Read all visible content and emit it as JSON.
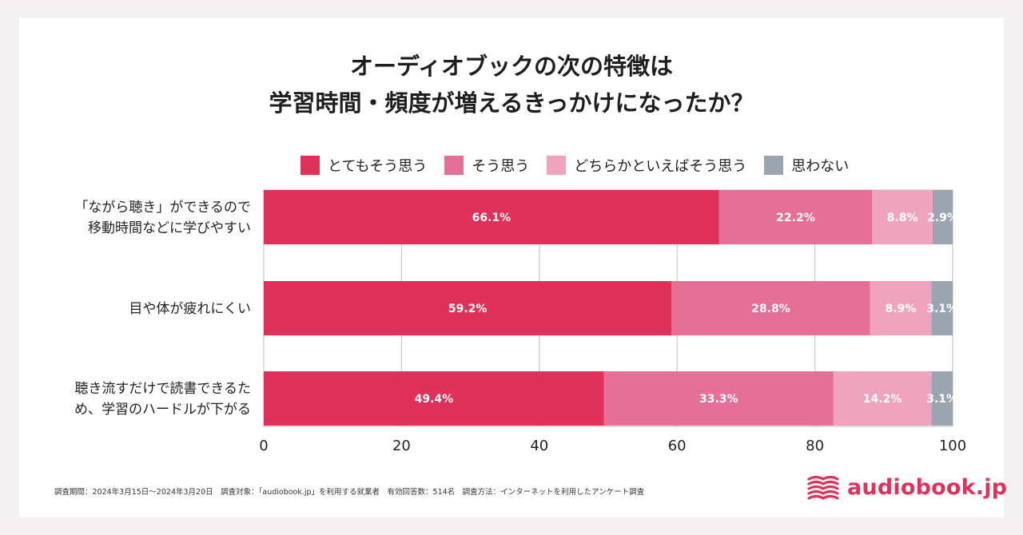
{
  "title": {
    "line1": "オーディオブックの次の特徴は",
    "line2": "学習時間・頻度が増えるきっかけになったか？"
  },
  "colors": {
    "strongly_agree": "#e0315a",
    "agree": "#e56f96",
    "somewhat_agree": "#f0a3bc",
    "disagree": "#9aa5b1",
    "grid": "#bdbdbd",
    "brand": "#e0335c"
  },
  "chart_data": {
    "type": "bar",
    "orientation": "horizontal",
    "stacked": true,
    "categories": [
      [
        "「ながら聴き」ができるので",
        "移動時間などに学びやすい"
      ],
      [
        "目や体が疲れにくい"
      ],
      [
        "聴き流すだけで読書できるた",
        "め、学習のハードルが下がる"
      ]
    ],
    "series": [
      {
        "name": "とてもそう思う",
        "color_key": "strongly_agree",
        "values": [
          66.1,
          59.2,
          49.4
        ]
      },
      {
        "name": "そう思う",
        "color_key": "agree",
        "values": [
          22.2,
          28.8,
          33.3
        ]
      },
      {
        "name": "どちらかといえばそう思う",
        "color_key": "somewhat_agree",
        "values": [
          8.8,
          8.9,
          14.2
        ]
      },
      {
        "name": "思わない",
        "color_key": "disagree",
        "values": [
          2.9,
          3.1,
          3.1
        ]
      }
    ],
    "data_labels": [
      [
        "66.1%",
        "22.2%",
        "8.8%",
        "2.9%"
      ],
      [
        "59.2%",
        "28.8%",
        "8.9%",
        "3.1%"
      ],
      [
        "49.4%",
        "33.3%",
        "14.2%",
        "3.1%"
      ]
    ],
    "xlim": [
      0,
      100
    ],
    "xticks": [
      "0",
      "20",
      "40",
      "60",
      "80",
      "100"
    ],
    "grid": true,
    "legend_position": "top"
  },
  "footer": {
    "note": "調査期間：2024年3月15日〜2024年3月20日　調査対象：「audiobook.jp」を利用する就業者　有効回答数：514名　調査方法：インターネットを利用したアンケート調査"
  },
  "brand": {
    "name": "audiobook.jp",
    "icon": "book-waves-icon"
  }
}
